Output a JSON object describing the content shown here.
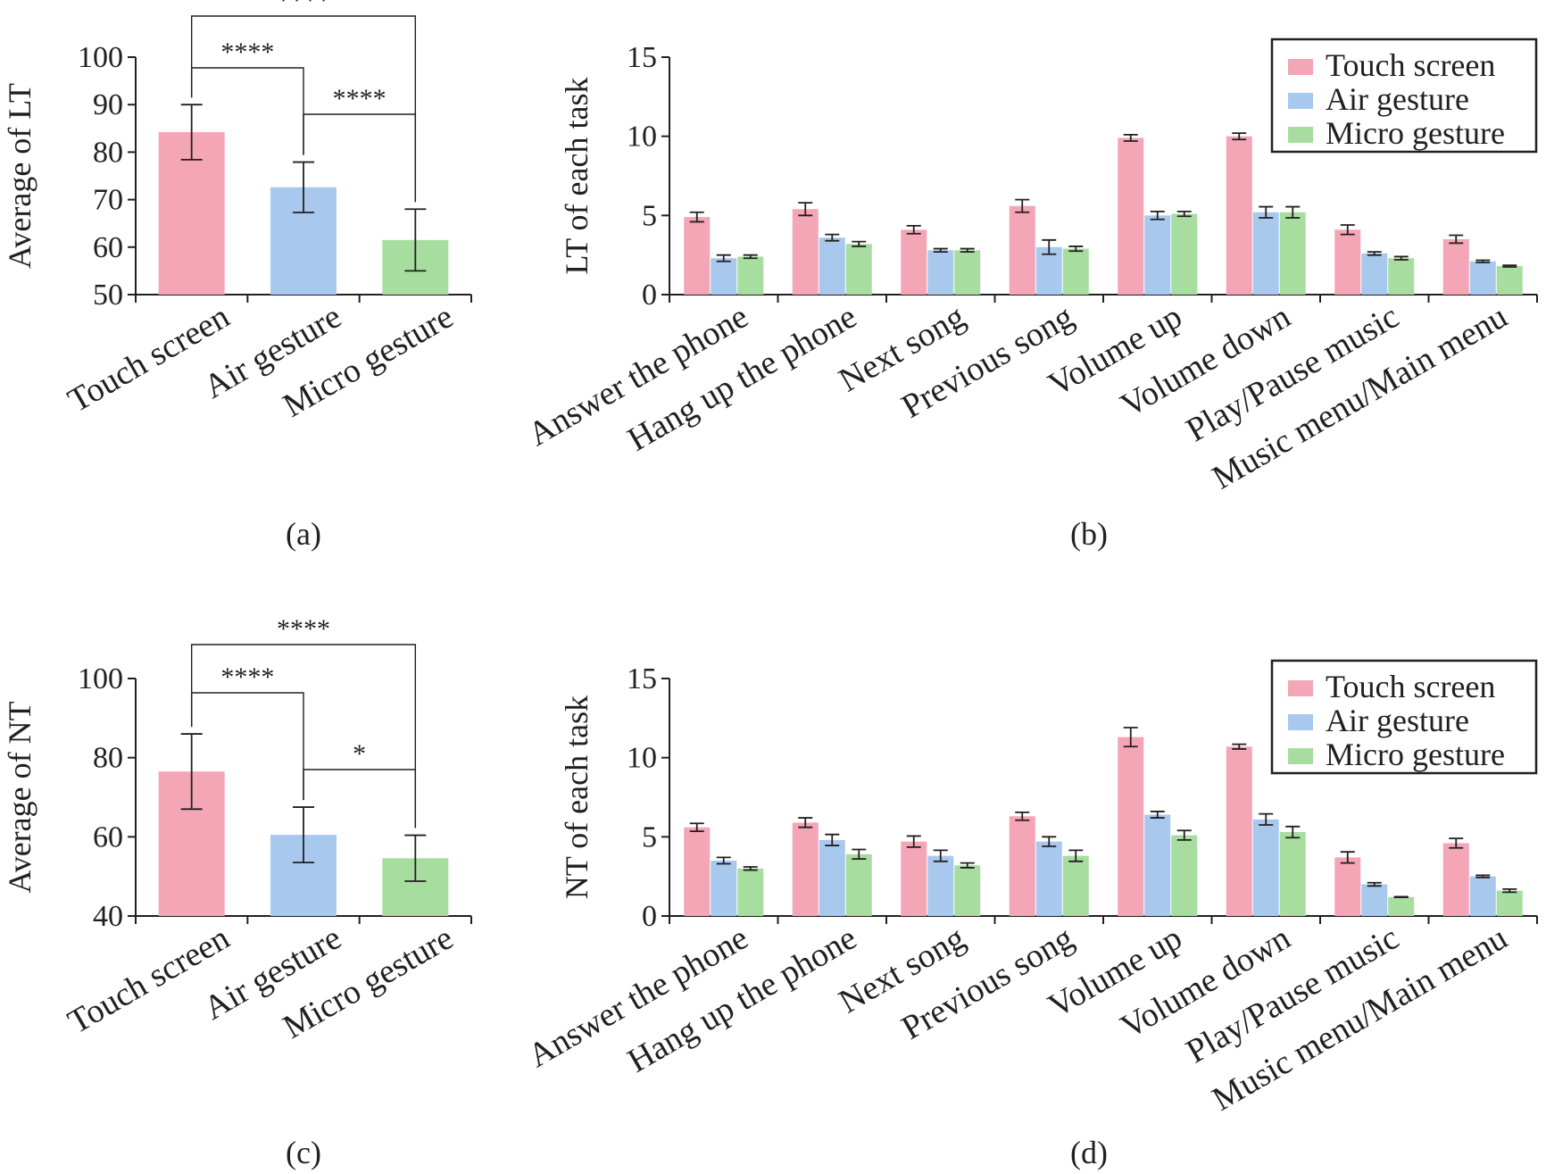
{
  "colors": {
    "touch": "#f4a6b7",
    "air": "#a8c8ee",
    "micro": "#a7dea0"
  },
  "chart_data": [
    {
      "id": "a",
      "type": "bar",
      "panel_label": "(a)",
      "ylabel": "Average of LT",
      "categories": [
        "Touch screen",
        "Air gesture",
        "Micro gesture"
      ],
      "values": [
        84.2,
        72.6,
        61.5
      ],
      "errors": [
        5.8,
        5.3,
        6.5
      ],
      "ylim": [
        50,
        100
      ],
      "yticks": [
        "50",
        "60",
        "70",
        "80",
        "90",
        "100"
      ],
      "significance": [
        {
          "from": 0,
          "to": 1,
          "label": "****"
        },
        {
          "from": 1,
          "to": 2,
          "label": "****"
        },
        {
          "from": 0,
          "to": 2,
          "label": "****"
        }
      ]
    },
    {
      "id": "b",
      "type": "bar",
      "panel_label": "(b)",
      "ylabel": "LT of each task",
      "categories": [
        "Answer the phone",
        "Hang up the phone",
        "Next song",
        "Previous song",
        "Volume up",
        "Volume down",
        "Play/Pause music",
        "Music menu/Main menu"
      ],
      "ylim": [
        0,
        15
      ],
      "yticks": [
        "0",
        "5",
        "10",
        "15"
      ],
      "legend_position": "top-right",
      "series": [
        {
          "name": "Touch screen",
          "values": [
            4.9,
            5.4,
            4.1,
            5.6,
            9.9,
            10.0,
            4.1,
            3.5
          ],
          "errors": [
            0.3,
            0.4,
            0.25,
            0.4,
            0.2,
            0.2,
            0.3,
            0.25
          ]
        },
        {
          "name": "Air gesture",
          "values": [
            2.3,
            3.6,
            2.8,
            3.0,
            5.0,
            5.2,
            2.6,
            2.1
          ],
          "errors": [
            0.2,
            0.2,
            0.1,
            0.45,
            0.25,
            0.35,
            0.1,
            0.07
          ]
        },
        {
          "name": "Micro gesture",
          "values": [
            2.4,
            3.2,
            2.8,
            2.9,
            5.1,
            5.2,
            2.3,
            1.8
          ],
          "errors": [
            0.1,
            0.15,
            0.1,
            0.15,
            0.15,
            0.35,
            0.1,
            0.05
          ]
        }
      ]
    },
    {
      "id": "c",
      "type": "bar",
      "panel_label": "(c)",
      "ylabel": "Average of NT",
      "categories": [
        "Touch screen",
        "Air gesture",
        "Micro gesture"
      ],
      "values": [
        76.5,
        60.5,
        54.6
      ],
      "errors": [
        9.5,
        7.0,
        5.8
      ],
      "ylim": [
        40,
        100
      ],
      "yticks": [
        "40",
        "60",
        "80",
        "100"
      ],
      "significance": [
        {
          "from": 0,
          "to": 1,
          "label": "****"
        },
        {
          "from": 1,
          "to": 2,
          "label": "*"
        },
        {
          "from": 0,
          "to": 2,
          "label": "****"
        }
      ]
    },
    {
      "id": "d",
      "type": "bar",
      "panel_label": "(d)",
      "ylabel": "NT of each task",
      "categories": [
        "Answer the phone",
        "Hang up the phone",
        "Next song",
        "Previous song",
        "Volume up",
        "Volume down",
        "Play/Pause music",
        "Music menu/Main menu"
      ],
      "ylim": [
        0,
        15
      ],
      "yticks": [
        "0",
        "5",
        "10",
        "15"
      ],
      "legend_position": "top-right",
      "series": [
        {
          "name": "Touch screen",
          "values": [
            5.6,
            5.9,
            4.7,
            6.3,
            11.3,
            10.7,
            3.7,
            4.6
          ],
          "errors": [
            0.25,
            0.3,
            0.35,
            0.25,
            0.6,
            0.15,
            0.35,
            0.3
          ]
        },
        {
          "name": "Air gesture",
          "values": [
            3.5,
            4.8,
            3.8,
            4.7,
            6.4,
            6.1,
            2.0,
            2.5
          ],
          "errors": [
            0.2,
            0.35,
            0.35,
            0.3,
            0.2,
            0.35,
            0.1,
            0.07
          ]
        },
        {
          "name": "Micro gesture",
          "values": [
            3.0,
            3.9,
            3.2,
            3.8,
            5.1,
            5.3,
            1.2,
            1.6
          ],
          "errors": [
            0.1,
            0.3,
            0.15,
            0.35,
            0.3,
            0.35,
            0.02,
            0.1
          ]
        }
      ]
    }
  ]
}
